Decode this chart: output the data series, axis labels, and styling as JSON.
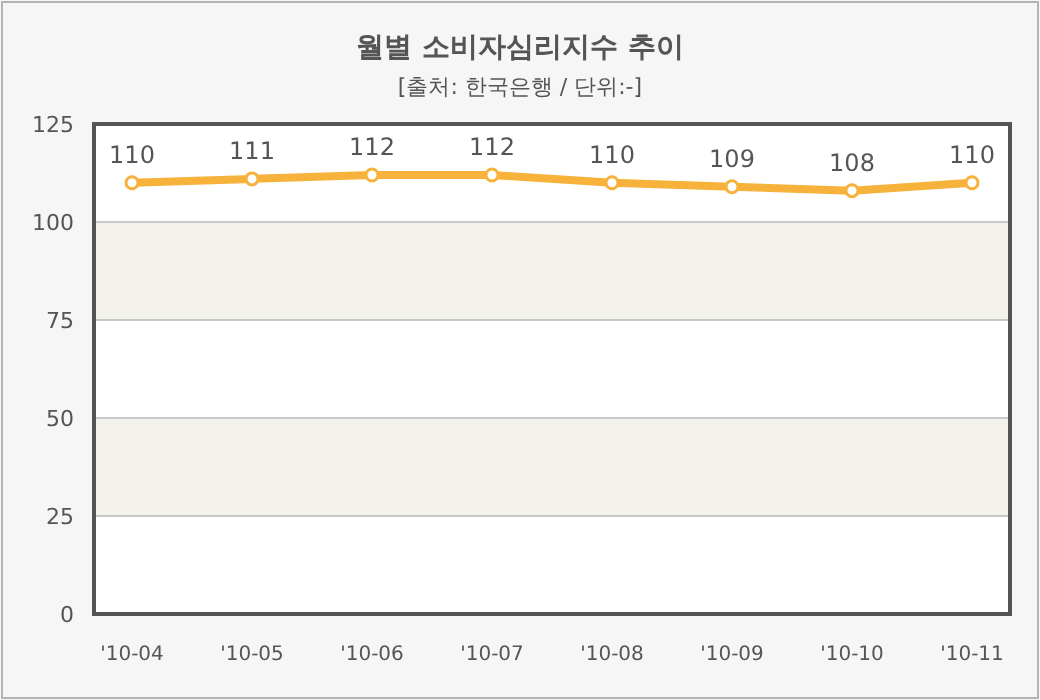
{
  "chart_data": {
    "type": "line",
    "title": "월별 소비자심리지수 추이",
    "subtitle": "[출처: 한국은행 / 단위:-]",
    "categories": [
      "'10-04",
      "'10-05",
      "'10-06",
      "'10-07",
      "'10-08",
      "'10-09",
      "'10-10",
      "'10-11"
    ],
    "series": [
      {
        "color": "#f7b23b",
        "values": [
          110,
          111,
          112,
          112,
          110,
          109,
          108,
          110
        ]
      }
    ],
    "ylim": [
      0,
      125
    ],
    "yticks": [
      0,
      25,
      50,
      75,
      100,
      125
    ],
    "grid": "y",
    "data_labels": true,
    "marker": "circle",
    "line_style": "solid"
  }
}
